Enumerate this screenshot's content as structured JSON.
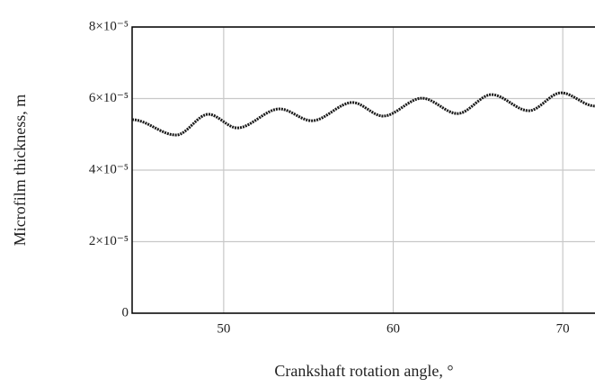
{
  "chart_data": {
    "type": "line",
    "xlabel": "Crankshaft rotation angle, °",
    "ylabel": "Microfilm thickness, m",
    "x": [
      44.6,
      47.2,
      49.1,
      50.8,
      53.3,
      55.2,
      57.6,
      59.4,
      61.7,
      63.8,
      65.8,
      68.0,
      69.9,
      71.9
    ],
    "values": [
      5.41e-05,
      4.98e-05,
      5.56e-05,
      5.18e-05,
      5.71e-05,
      5.38e-05,
      5.89e-05,
      5.51e-05,
      6.01e-05,
      5.58e-05,
      6.11e-05,
      5.66e-05,
      6.16e-05,
      5.79e-05
    ],
    "color": "#1a1a1a",
    "xlim": [
      44.6,
      71.9
    ],
    "xticks": [
      50,
      60,
      70
    ],
    "ylim": [
      0,
      8e-05
    ],
    "yticks": [
      0,
      {
        "value": 2e-05,
        "label": "2×10⁻⁵"
      },
      {
        "value": 4e-05,
        "label": "4×10⁻⁵"
      },
      {
        "value": 6e-05,
        "label": "6×10⁻⁵"
      },
      {
        "value": 8e-05,
        "label": "8×10⁻⁵"
      }
    ],
    "grid": true
  }
}
